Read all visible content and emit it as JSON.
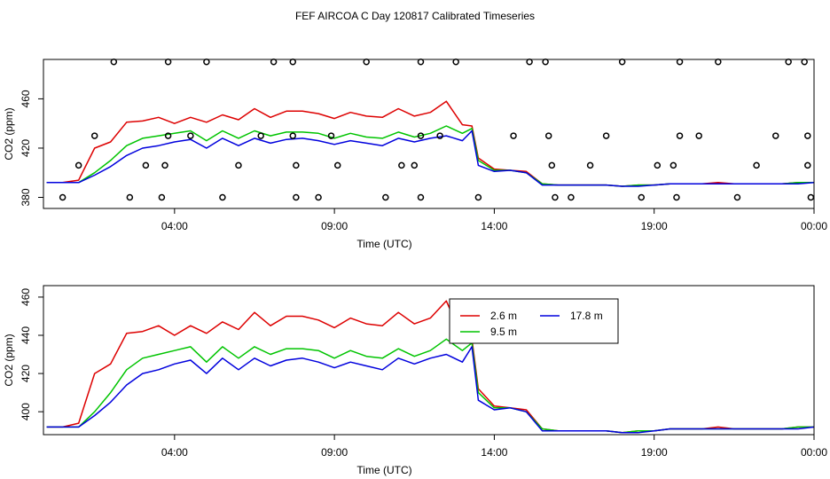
{
  "page": {
    "title": "FEF AIRCOA C  Day 120817  Calibrated Timeseries"
  },
  "colors": {
    "red": "#dd0000",
    "green": "#00c400",
    "blue": "#0000dd",
    "axis": "#000000"
  },
  "chart_data": [
    {
      "type": "line",
      "title": "",
      "xlabel": "Time (UTC)",
      "ylabel": "CO2 (ppm)",
      "xlim": [
        0.4,
        24.5
      ],
      "ylim": [
        371,
        492
      ],
      "xticks": [
        {
          "x": 4.5,
          "label": "04:00"
        },
        {
          "x": 9.5,
          "label": "09:00"
        },
        {
          "x": 14.5,
          "label": "14:00"
        },
        {
          "x": 19.5,
          "label": "19:00"
        },
        {
          "x": 24.5,
          "label": "00:00"
        }
      ],
      "yticks": [
        {
          "y": 380,
          "label": "380"
        },
        {
          "y": 420,
          "label": "420"
        },
        {
          "y": 460,
          "label": "460"
        }
      ],
      "x": [
        0.5,
        1.0,
        1.5,
        2.0,
        2.5,
        3.0,
        3.5,
        4.0,
        4.5,
        5.0,
        5.5,
        6.0,
        6.5,
        7.0,
        7.5,
        8.0,
        8.5,
        9.0,
        9.5,
        10.0,
        10.5,
        11.0,
        11.5,
        12.0,
        12.5,
        13.0,
        13.5,
        13.8,
        14.0,
        14.5,
        15.0,
        15.5,
        16.0,
        16.5,
        17.0,
        17.5,
        18.0,
        18.5,
        19.0,
        19.5,
        20.0,
        20.5,
        21.0,
        21.5,
        22.0,
        22.5,
        23.0,
        23.5,
        24.0,
        24.5
      ],
      "series": [
        {
          "name": "2.6 m",
          "color": "red",
          "values": [
            392,
            392,
            394,
            420,
            425,
            441,
            442,
            445,
            440,
            445,
            441,
            447,
            443,
            452,
            445,
            450,
            450,
            448,
            444,
            449,
            446,
            445,
            452,
            446,
            449,
            458,
            439,
            438,
            412,
            403,
            402,
            401,
            391,
            390,
            390,
            390,
            390,
            389,
            390,
            390,
            391,
            391,
            391,
            392,
            391,
            391,
            391,
            391,
            392,
            392
          ]
        },
        {
          "name": "9.5 m",
          "color": "green",
          "values": [
            392,
            392,
            392,
            400,
            410,
            422,
            428,
            430,
            432,
            434,
            426,
            434,
            428,
            434,
            430,
            433,
            433,
            432,
            428,
            432,
            429,
            428,
            433,
            429,
            432,
            438,
            432,
            436,
            410,
            402,
            402,
            400,
            391,
            390,
            390,
            390,
            390,
            389,
            390,
            390,
            391,
            391,
            391,
            391,
            391,
            391,
            391,
            391,
            392,
            392
          ]
        },
        {
          "name": "17.8 m",
          "color": "blue",
          "values": [
            392,
            392,
            392,
            398,
            405,
            414,
            420,
            422,
            425,
            427,
            420,
            428,
            422,
            428,
            424,
            427,
            428,
            426,
            423,
            426,
            424,
            422,
            428,
            425,
            428,
            430,
            426,
            434,
            406,
            401,
            402,
            400,
            390,
            390,
            390,
            390,
            390,
            389,
            389,
            390,
            391,
            391,
            391,
            391,
            391,
            391,
            391,
            391,
            391,
            392
          ]
        }
      ],
      "markers": [
        {
          "x": 1.0,
          "y": 380
        },
        {
          "x": 1.5,
          "y": 406
        },
        {
          "x": 2.0,
          "y": 430
        },
        {
          "x": 2.6,
          "y": 490
        },
        {
          "x": 3.1,
          "y": 380
        },
        {
          "x": 3.6,
          "y": 406
        },
        {
          "x": 4.1,
          "y": 380
        },
        {
          "x": 4.2,
          "y": 406
        },
        {
          "x": 4.3,
          "y": 430
        },
        {
          "x": 4.3,
          "y": 490
        },
        {
          "x": 5.0,
          "y": 430
        },
        {
          "x": 5.5,
          "y": 490
        },
        {
          "x": 6.0,
          "y": 380
        },
        {
          "x": 6.5,
          "y": 406
        },
        {
          "x": 7.2,
          "y": 430
        },
        {
          "x": 7.6,
          "y": 490
        },
        {
          "x": 8.2,
          "y": 490
        },
        {
          "x": 8.2,
          "y": 430
        },
        {
          "x": 8.3,
          "y": 406
        },
        {
          "x": 8.3,
          "y": 380
        },
        {
          "x": 9.0,
          "y": 380
        },
        {
          "x": 9.4,
          "y": 430
        },
        {
          "x": 9.6,
          "y": 406
        },
        {
          "x": 10.5,
          "y": 490
        },
        {
          "x": 11.1,
          "y": 380
        },
        {
          "x": 11.6,
          "y": 406
        },
        {
          "x": 12.0,
          "y": 406
        },
        {
          "x": 12.2,
          "y": 430
        },
        {
          "x": 12.2,
          "y": 490
        },
        {
          "x": 12.2,
          "y": 380
        },
        {
          "x": 12.8,
          "y": 430
        },
        {
          "x": 13.3,
          "y": 490
        },
        {
          "x": 14.0,
          "y": 380
        },
        {
          "x": 15.1,
          "y": 430
        },
        {
          "x": 15.6,
          "y": 490
        },
        {
          "x": 16.1,
          "y": 490
        },
        {
          "x": 16.2,
          "y": 430
        },
        {
          "x": 16.3,
          "y": 406
        },
        {
          "x": 16.4,
          "y": 380
        },
        {
          "x": 16.9,
          "y": 380
        },
        {
          "x": 17.5,
          "y": 406
        },
        {
          "x": 18.0,
          "y": 430
        },
        {
          "x": 18.5,
          "y": 490
        },
        {
          "x": 19.1,
          "y": 380
        },
        {
          "x": 19.6,
          "y": 406
        },
        {
          "x": 20.1,
          "y": 406
        },
        {
          "x": 20.2,
          "y": 380
        },
        {
          "x": 20.3,
          "y": 430
        },
        {
          "x": 20.3,
          "y": 490
        },
        {
          "x": 20.9,
          "y": 430
        },
        {
          "x": 21.5,
          "y": 490
        },
        {
          "x": 22.1,
          "y": 380
        },
        {
          "x": 22.7,
          "y": 406
        },
        {
          "x": 23.3,
          "y": 430
        },
        {
          "x": 23.7,
          "y": 490
        },
        {
          "x": 24.2,
          "y": 490
        },
        {
          "x": 24.3,
          "y": 430
        },
        {
          "x": 24.3,
          "y": 406
        },
        {
          "x": 24.4,
          "y": 380
        }
      ]
    },
    {
      "type": "line",
      "title": "",
      "xlabel": "Time (UTC)",
      "ylabel": "CO2 (ppm)",
      "xlim": [
        0.4,
        24.5
      ],
      "ylim": [
        388,
        466
      ],
      "xticks": [
        {
          "x": 4.5,
          "label": "04:00"
        },
        {
          "x": 9.5,
          "label": "09:00"
        },
        {
          "x": 14.5,
          "label": "14:00"
        },
        {
          "x": 19.5,
          "label": "19:00"
        },
        {
          "x": 24.5,
          "label": "00:00"
        }
      ],
      "yticks": [
        {
          "y": 400,
          "label": "400"
        },
        {
          "y": 420,
          "label": "420"
        },
        {
          "y": 440,
          "label": "440"
        },
        {
          "y": 460,
          "label": "460"
        }
      ],
      "legend": [
        {
          "name": "2.6 m",
          "color": "red"
        },
        {
          "name": "17.8 m",
          "color": "blue"
        },
        {
          "name": "9.5 m",
          "color": "green"
        }
      ],
      "x": [
        0.5,
        1.0,
        1.5,
        2.0,
        2.5,
        3.0,
        3.5,
        4.0,
        4.5,
        5.0,
        5.5,
        6.0,
        6.5,
        7.0,
        7.5,
        8.0,
        8.5,
        9.0,
        9.5,
        10.0,
        10.5,
        11.0,
        11.5,
        12.0,
        12.5,
        13.0,
        13.5,
        13.8,
        14.0,
        14.5,
        15.0,
        15.5,
        16.0,
        16.5,
        17.0,
        17.5,
        18.0,
        18.5,
        19.0,
        19.5,
        20.0,
        20.5,
        21.0,
        21.5,
        22.0,
        22.5,
        23.0,
        23.5,
        24.0,
        24.5
      ],
      "series": [
        {
          "name": "2.6 m",
          "color": "red",
          "values": [
            392,
            392,
            394,
            420,
            425,
            441,
            442,
            445,
            440,
            445,
            441,
            447,
            443,
            452,
            445,
            450,
            450,
            448,
            444,
            449,
            446,
            445,
            452,
            446,
            449,
            458,
            439,
            438,
            412,
            403,
            402,
            401,
            391,
            390,
            390,
            390,
            390,
            389,
            390,
            390,
            391,
            391,
            391,
            392,
            391,
            391,
            391,
            391,
            392,
            392
          ]
        },
        {
          "name": "9.5 m",
          "color": "green",
          "values": [
            392,
            392,
            392,
            400,
            410,
            422,
            428,
            430,
            432,
            434,
            426,
            434,
            428,
            434,
            430,
            433,
            433,
            432,
            428,
            432,
            429,
            428,
            433,
            429,
            432,
            438,
            432,
            436,
            410,
            402,
            402,
            400,
            391,
            390,
            390,
            390,
            390,
            389,
            390,
            390,
            391,
            391,
            391,
            391,
            391,
            391,
            391,
            391,
            392,
            392
          ]
        },
        {
          "name": "17.8 m",
          "color": "blue",
          "values": [
            392,
            392,
            392,
            398,
            405,
            414,
            420,
            422,
            425,
            427,
            420,
            428,
            422,
            428,
            424,
            427,
            428,
            426,
            423,
            426,
            424,
            422,
            428,
            425,
            428,
            430,
            426,
            434,
            406,
            401,
            402,
            400,
            390,
            390,
            390,
            390,
            390,
            389,
            389,
            390,
            391,
            391,
            391,
            391,
            391,
            391,
            391,
            391,
            391,
            392
          ]
        }
      ]
    }
  ]
}
